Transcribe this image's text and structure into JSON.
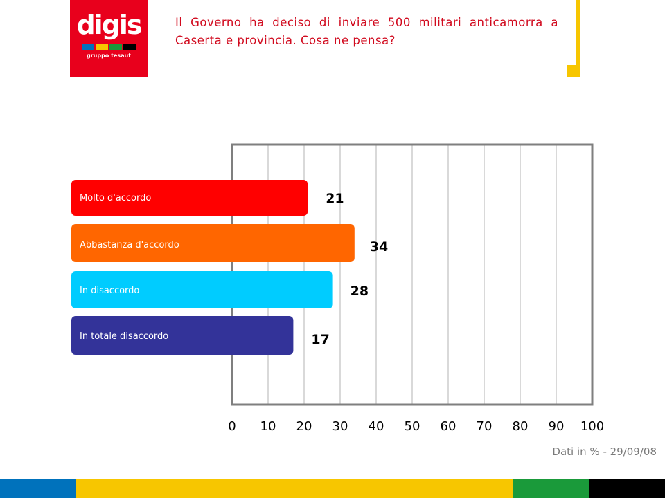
{
  "logo": {
    "brand": "digis",
    "subtitle": "gruppo tesaut",
    "background_color": "#e8001c",
    "stripe_colors": [
      "#0072bc",
      "#f7c600",
      "#1a9a3a",
      "#000000"
    ]
  },
  "title": "Il Governo ha deciso di inviare 500 militari anticamorra a Caserta e provincia. Cosa ne pensa?",
  "footer_note": "Dati in % - 29/09/08",
  "bottom_band_colors": [
    "#0072bc",
    "#f7c600",
    "#1a9a3a",
    "#000000"
  ],
  "chart_data": {
    "type": "bar",
    "orientation": "horizontal",
    "categories": [
      "Molto d'accordo",
      "Abbastanza d'accordo",
      "In disaccordo",
      "In totale disaccordo"
    ],
    "values": [
      21,
      34,
      28,
      17
    ],
    "colors": [
      "#ff0000",
      "#ff6600",
      "#00ccff",
      "#333399"
    ],
    "xlim": [
      0,
      100
    ],
    "x_ticks": [
      0,
      10,
      20,
      30,
      40,
      50,
      60,
      70,
      80,
      90,
      100
    ],
    "grid": true,
    "legend": "none"
  }
}
